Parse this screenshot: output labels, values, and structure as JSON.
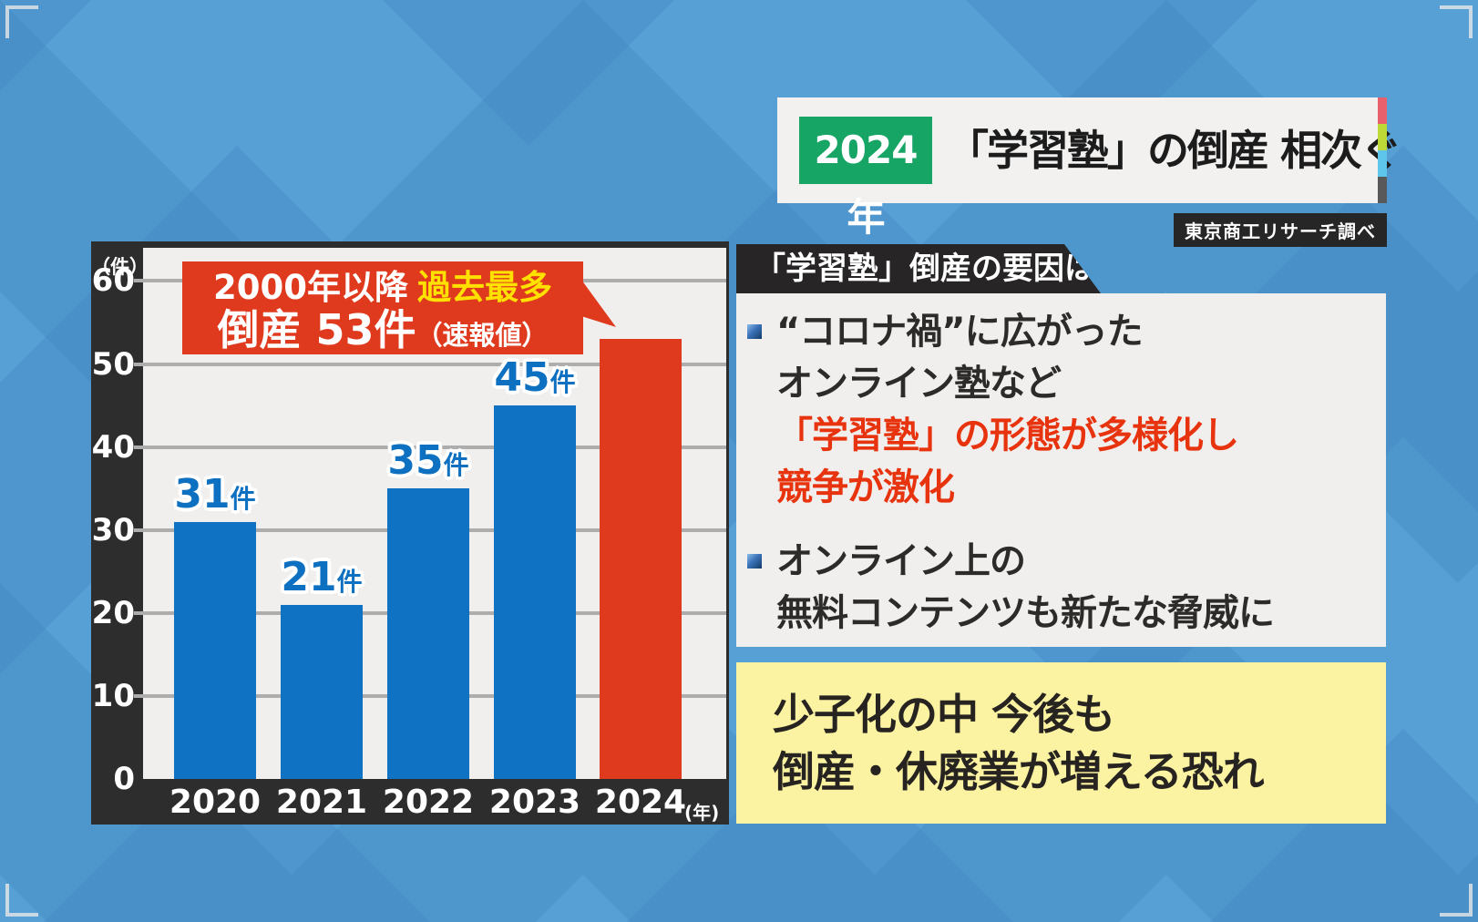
{
  "colors": {
    "background_blue": "#4e97cd",
    "bar_blue": "#0f72c3",
    "bar_red": "#e03a1e",
    "callout_bg": "#e03a1e",
    "callout_highlight_yellow": "#ffe100",
    "green_year_badge": "#17a566",
    "panel_dark": "#2e2d2d",
    "emphasis_red_text": "#e8340e",
    "conclusion_yellow": "#fcf3a2",
    "stripe_colors": [
      "#e8606c",
      "#bcd938",
      "#5ec6ea",
      "#595959"
    ]
  },
  "title": {
    "year": "2024年",
    "headline": "「学習塾」の倒産 相次ぐ"
  },
  "source_badge": "東京商工リサーチ調べ",
  "chart_data": {
    "type": "bar",
    "categories": [
      "2020",
      "2021",
      "2022",
      "2023",
      "2024"
    ],
    "values": [
      31,
      21,
      35,
      45,
      53
    ],
    "unit": "件",
    "y_unit_label": "（件）",
    "x_unit_label": "(年)",
    "ylim": [
      0,
      60
    ],
    "yticks": [
      0,
      10,
      20,
      30,
      40,
      50,
      60
    ],
    "grid": true,
    "legend": "none",
    "bar_colors": [
      "#0f72c3",
      "#0f72c3",
      "#0f72c3",
      "#0f72c3",
      "#e03a1e"
    ],
    "value_label_shown": [
      true,
      true,
      true,
      true,
      false
    ],
    "callout": {
      "line1_prefix": "2000年以降",
      "line1_highlight": "過去最多",
      "line2_main": "倒産 53件",
      "line2_suffix": "（速報値）"
    }
  },
  "factors": {
    "header": "「学習塾」倒産の要因は？",
    "bullets": [
      {
        "lines": [
          {
            "text": "“コロナ禍”に広がった",
            "emphasis": false
          },
          {
            "text": "オンライン塾など",
            "emphasis": false
          },
          {
            "text": "「学習塾」の形態が多様化し",
            "emphasis": true
          },
          {
            "text": "競争が激化",
            "emphasis": true
          }
        ]
      },
      {
        "lines": [
          {
            "text": "オンライン上の",
            "emphasis": false
          },
          {
            "text": "無料コンテンツも新たな脅威に",
            "emphasis": false
          }
        ]
      }
    ]
  },
  "conclusion": {
    "lines": [
      "少子化の中 今後も",
      "倒産・休廃業が増える恐れ"
    ]
  }
}
